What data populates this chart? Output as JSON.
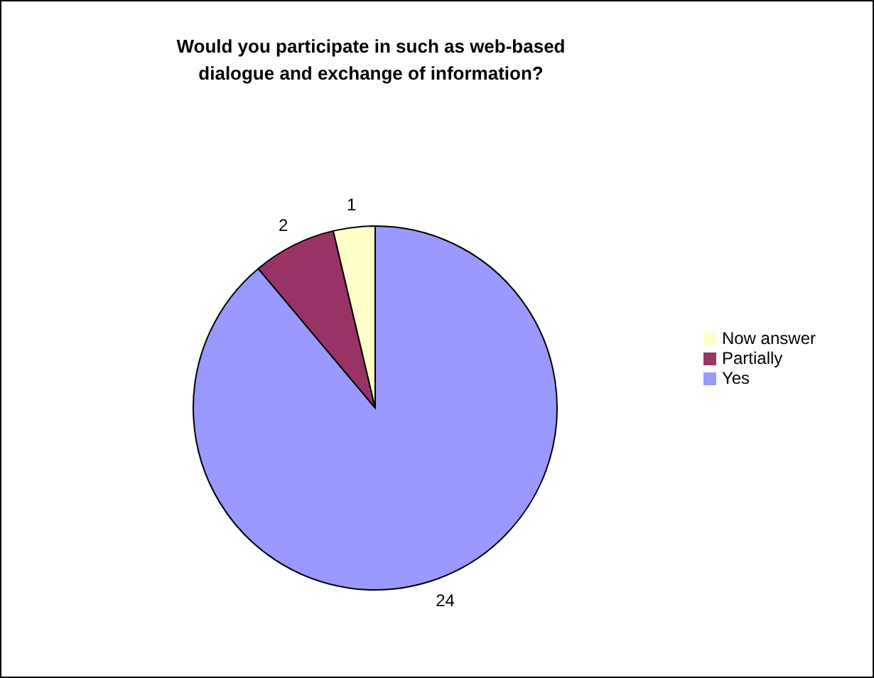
{
  "chart_data": {
    "type": "pie",
    "title": "Would you participate in such as web-based dialogue and exchange of information?",
    "categories": [
      "Yes",
      "Partially",
      "Now answer"
    ],
    "values": [
      24,
      2,
      1
    ],
    "colors": [
      "#9999ff",
      "#993366",
      "#ffffcc"
    ],
    "data_labels": true,
    "legend": "right"
  }
}
